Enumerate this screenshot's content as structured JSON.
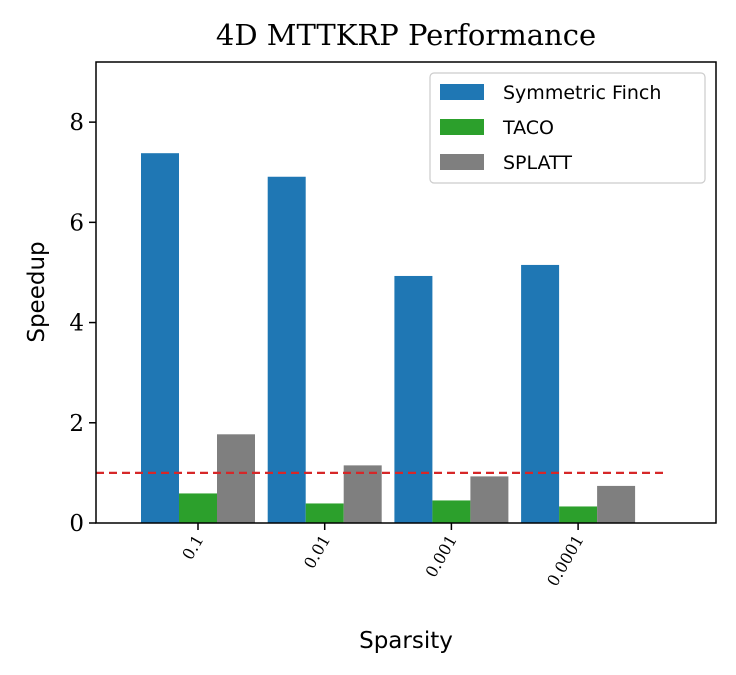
{
  "chart_data": {
    "type": "bar",
    "title": "4D MTTKRP Performance",
    "xlabel": "Sparsity",
    "ylabel": "Speedup",
    "categories": [
      "0.1",
      "0.01",
      "0.001",
      "0.0001"
    ],
    "series": [
      {
        "name": "Symmetric Finch",
        "color": "#1f77b4",
        "values": [
          7.38,
          6.91,
          4.93,
          5.15
        ]
      },
      {
        "name": "TACO",
        "color": "#2ca02c",
        "values": [
          0.59,
          0.39,
          0.45,
          0.33
        ]
      },
      {
        "name": "SPLATT",
        "color": "#7f7f7f",
        "values": [
          1.77,
          1.15,
          0.93,
          0.74
        ]
      }
    ],
    "yticks": [
      0,
      2,
      4,
      6,
      8
    ],
    "ylim": [
      0,
      9.2
    ],
    "reference_line": {
      "y": 1.0,
      "style": "dashed",
      "color": "#d62728"
    },
    "legend_position": "top-right",
    "grid": false
  }
}
